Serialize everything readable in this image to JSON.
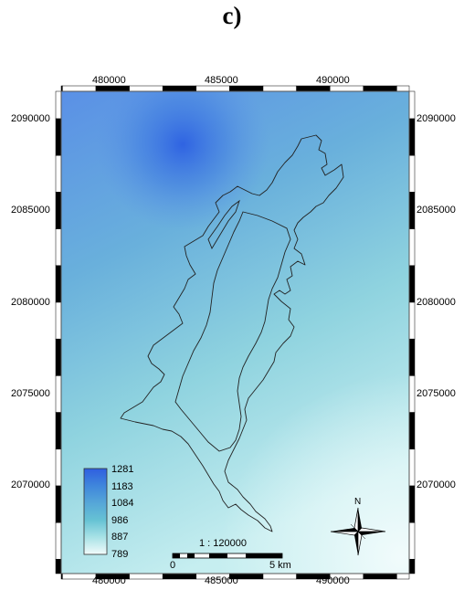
{
  "panel_label": "c)",
  "x_ticks": [
    "480000",
    "485000",
    "490000"
  ],
  "y_ticks": [
    "2090000",
    "2085000",
    "2080000",
    "2075000",
    "2070000"
  ],
  "legend": {
    "values": [
      "1281",
      "1183",
      "1084",
      "986",
      "887",
      "789"
    ],
    "colors": [
      "#2f5fe0",
      "#3f86dc",
      "#55a6d8",
      "#66c2d4",
      "#a8e2e6",
      "#f2fbfb"
    ]
  },
  "scale": {
    "ratio": "1 : 120000",
    "start": "0",
    "end": "5 km"
  },
  "north": {
    "label": "N"
  }
}
